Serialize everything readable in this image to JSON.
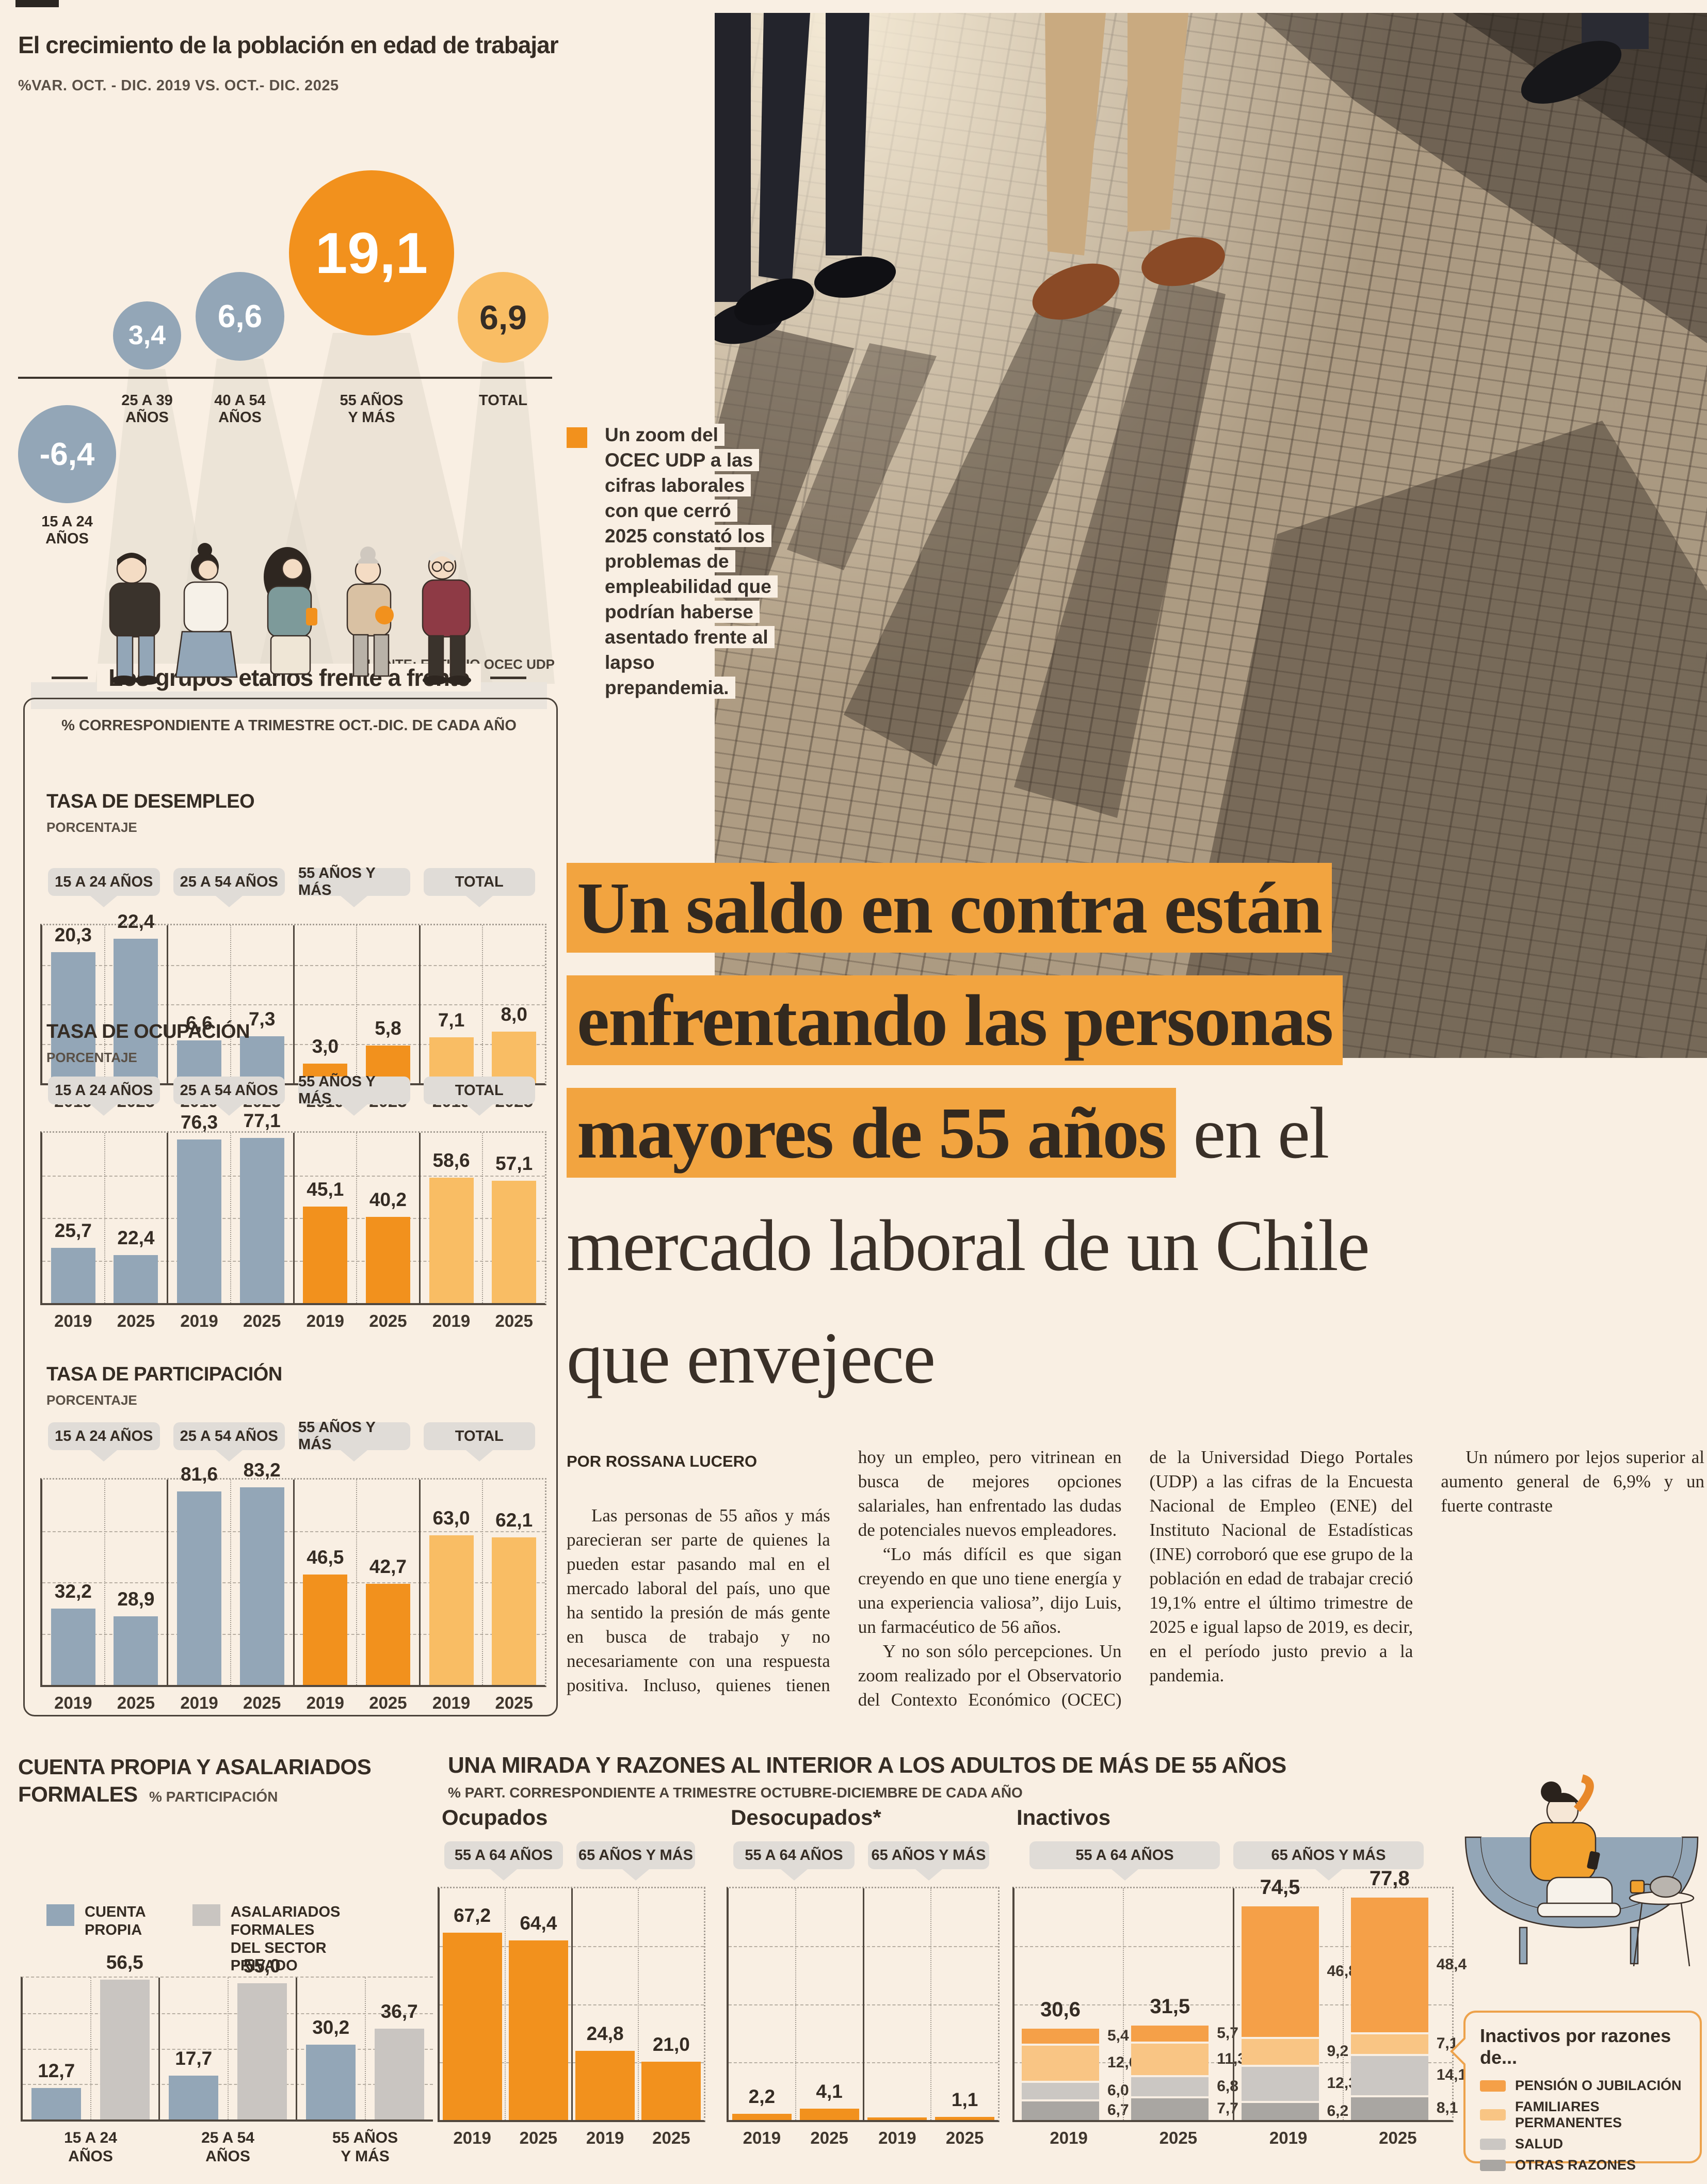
{
  "page": {
    "background": "#f9efe3",
    "text_dark": "#352c24",
    "accent_orange": "#f2911d",
    "accent_light_orange": "#f9bd64",
    "accent_blue_gray": "#93a6b7",
    "headline_highlight": "#f2a440"
  },
  "chart_data": [
    {
      "id": "growth",
      "type": "bar",
      "title": "El crecimiento de la población en edad de trabajar",
      "subtitle": "%VAR. OCT. - DIC. 2019 VS. OCT.- DIC. 2025",
      "source": "FUENTE: ESTUDIO OCEC UDP",
      "points": [
        {
          "label": "15 A 24\nAÑOS",
          "value": "-6,4",
          "num": -6.4,
          "color": "#93a6b7"
        },
        {
          "label": "25 A 39\nAÑOS",
          "value": "3,4",
          "num": 3.4,
          "color": "#93a6b7"
        },
        {
          "label": "40 A 54\nAÑOS",
          "value": "6,6",
          "num": 6.6,
          "color": "#93a6b7"
        },
        {
          "label": "55 AÑOS\nY MÁS",
          "value": "19,1",
          "num": 19.1,
          "color": "#f2911d"
        },
        {
          "label": "TOTAL",
          "value": "6,9",
          "num": 6.9,
          "color": "#f9bd64"
        }
      ]
    },
    {
      "id": "desempleo",
      "type": "bar",
      "title": "TASA DE DESEMPLEO",
      "unit": "PORCENTAJE",
      "years": [
        "2019",
        "2025"
      ],
      "groups": [
        {
          "label": "15 A 24 AÑOS",
          "color": "#93a6b7",
          "values": [
            20.3,
            22.4
          ],
          "labels": [
            "20,3",
            "22,4"
          ]
        },
        {
          "label": "25 A 54 AÑOS",
          "color": "#93a6b7",
          "values": [
            6.6,
            7.3
          ],
          "labels": [
            "6,6",
            "7,3"
          ]
        },
        {
          "label": "55 AÑOS Y MÁS",
          "color": "#f2911d",
          "values": [
            3.0,
            5.8
          ],
          "labels": [
            "3,0",
            "5,8"
          ]
        },
        {
          "label": "TOTAL",
          "color": "#f9bd64",
          "values": [
            7.1,
            8.0
          ],
          "labels": [
            "7,1",
            "8,0"
          ]
        }
      ]
    },
    {
      "id": "ocupacion",
      "type": "bar",
      "title": "TASA DE OCUPACIÓN",
      "unit": "PORCENTAJE",
      "years": [
        "2019",
        "2025"
      ],
      "groups": [
        {
          "label": "15 A 24 AÑOS",
          "color": "#93a6b7",
          "values": [
            25.7,
            22.4
          ],
          "labels": [
            "25,7",
            "22,4"
          ]
        },
        {
          "label": "25 A 54 AÑOS",
          "color": "#93a6b7",
          "values": [
            76.3,
            77.1
          ],
          "labels": [
            "76,3",
            "77,1"
          ]
        },
        {
          "label": "55 AÑOS Y MÁS",
          "color": "#f2911d",
          "values": [
            45.1,
            40.2
          ],
          "labels": [
            "45,1",
            "40,2"
          ]
        },
        {
          "label": "TOTAL",
          "color": "#f9bd64",
          "values": [
            58.6,
            57.1
          ],
          "labels": [
            "58,6",
            "57,1"
          ]
        }
      ]
    },
    {
      "id": "participacion",
      "type": "bar",
      "title": "TASA DE PARTICIPACIÓN",
      "unit": "PORCENTAJE",
      "years": [
        "2019",
        "2025"
      ],
      "groups": [
        {
          "label": "15 A 24 AÑOS",
          "color": "#93a6b7",
          "values": [
            32.2,
            28.9
          ],
          "labels": [
            "32,2",
            "28,9"
          ]
        },
        {
          "label": "25 A 54 AÑOS",
          "color": "#93a6b7",
          "values": [
            81.6,
            83.2
          ],
          "labels": [
            "81,6",
            "83,2"
          ]
        },
        {
          "label": "55 AÑOS Y MÁS",
          "color": "#f2911d",
          "values": [
            46.5,
            42.7
          ],
          "labels": [
            "46,5",
            "42,7"
          ]
        },
        {
          "label": "TOTAL",
          "color": "#f9bd64",
          "values": [
            63.0,
            62.1
          ],
          "labels": [
            "63,0",
            "62,1"
          ]
        }
      ]
    },
    {
      "id": "cuenta_propia",
      "type": "bar",
      "title": "CUENTA PROPIA Y ASALARIADOS FORMALES",
      "unit": "% PARTICIPACIÓN",
      "series": [
        {
          "name": "CUENTA\nPROPIA",
          "color": "#93a6b7"
        },
        {
          "name": "ASALARIADOS FORMALES\nDEL SECTOR PRIVADO",
          "color": "#c9c5c1"
        }
      ],
      "groups": [
        {
          "label": "15 A 24\nAÑOS",
          "values": [
            12.7,
            56.5
          ],
          "labels": [
            "12,7",
            "56,5"
          ]
        },
        {
          "label": "25 A 54\nAÑOS",
          "values": [
            17.7,
            55.0
          ],
          "labels": [
            "17,7",
            "55,0"
          ]
        },
        {
          "label": "55 AÑOS\nY MÁS",
          "values": [
            30.2,
            36.7
          ],
          "labels": [
            "30,2",
            "36,7"
          ]
        }
      ]
    },
    {
      "id": "ocupados",
      "type": "bar",
      "title": "Ocupados",
      "years": [
        "2019",
        "2025"
      ],
      "groups": [
        {
          "label": "55 A 64 AÑOS",
          "color": "#f2911d",
          "values": [
            67.2,
            64.4
          ],
          "labels": [
            "67,2",
            "64,4"
          ]
        },
        {
          "label": "65 AÑOS Y MÁS",
          "color": "#f2911d",
          "values": [
            24.8,
            21.0
          ],
          "labels": [
            "24,8",
            "21,0"
          ]
        }
      ]
    },
    {
      "id": "desocupados",
      "type": "bar",
      "title": "Desocupados*",
      "years": [
        "2019",
        "2025"
      ],
      "groups": [
        {
          "label": "55 A 64 AÑOS",
          "color": "#f2911d",
          "values": [
            2.2,
            4.1
          ],
          "labels": [
            "2,2",
            "4,1"
          ]
        },
        {
          "label": "65 AÑOS Y MÁS",
          "color": "#f2911d",
          "values": [
            null,
            1.1
          ],
          "labels": [
            "",
            "1,1"
          ]
        }
      ]
    },
    {
      "id": "inactivos",
      "type": "stacked-bar",
      "title": "Inactivos",
      "years": [
        "2019",
        "2025"
      ],
      "stack": [
        {
          "name": "PENSIÓN O JUBILACIÓN",
          "color": "#f5a048"
        },
        {
          "name": "FAMILIARES PERMANENTES",
          "color": "#f9c584"
        },
        {
          "name": "SALUD",
          "color": "#cbc7c3"
        },
        {
          "name": "OTRAS RAZONES",
          "color": "#a9a6a2"
        }
      ],
      "groups": [
        {
          "label": "55 A 64 AÑOS",
          "bars": [
            {
              "year": "2019",
              "total": "30,6",
              "values": [
                5.4,
                12.6,
                6.0,
                6.7
              ],
              "labels": [
                "5,4",
                "12,6",
                "6,0",
                "6,7"
              ]
            },
            {
              "year": "2025",
              "total": "31,5",
              "values": [
                5.7,
                11.3,
                6.8,
                7.7
              ],
              "labels": [
                "5,7",
                "11,3",
                "6,8",
                "7,7"
              ]
            }
          ]
        },
        {
          "label": "65 AÑOS Y MÁS",
          "bars": [
            {
              "year": "2019",
              "total": "74,5",
              "values": [
                46.8,
                9.2,
                12.3,
                6.2
              ],
              "labels": [
                "46,8",
                "9,2",
                "12,3",
                "6,2"
              ]
            },
            {
              "year": "2025",
              "total": "77,8",
              "values": [
                48.4,
                7.1,
                14.1,
                8.1
              ],
              "labels": [
                "48,4",
                "7,1",
                "14,1",
                "8,1"
              ]
            }
          ]
        }
      ]
    }
  ],
  "groups_box": {
    "title": "Los grupos etarios frente a frente",
    "subtitle": "% CORRESPONDIENTE A TRIMESTRE OCT.-DIC. DE CADA AÑO"
  },
  "bottom_mid": {
    "title": "UNA MIRADA Y RAZONES AL INTERIOR A LOS ADULTOS DE MÁS DE 55 AÑOS",
    "subtitle": "% PART. CORRESPONDIENTE A TRIMESTRE OCTUBRE-DICIEMBRE DE CADA AÑO"
  },
  "inactive_reasons": {
    "title": "Inactivos por razones de...",
    "items": [
      {
        "label": "PENSIÓN O JUBILACIÓN",
        "color": "#f5a048"
      },
      {
        "label": "FAMILIARES PERMANENTES",
        "color": "#f9c584"
      },
      {
        "label": "SALUD",
        "color": "#cbc7c3"
      },
      {
        "label": "OTRAS RAZONES",
        "color": "#a9a6a2"
      }
    ]
  },
  "feature": {
    "kicker_text": "Un zoom del OCEC UDP a las cifras laborales con que cerró 2025 constató los problemas de empleabilidad que podrían haberse asentado frente al lapso prepandemia.",
    "headline_highlight_1": "Un saldo en contra están",
    "headline_highlight_2": "enfrentando las personas",
    "headline_highlight_3": "mayores de 55 años",
    "headline_rest_3": " en el",
    "headline_line_4": "mercado laboral de un Chile",
    "headline_line_5": "que envejece",
    "byline": "POR ROSSANA LUCERO",
    "paragraphs": [
      "Las personas de 55 años y más parecieran ser parte de quienes la pueden estar pasando mal en el mercado laboral del país, uno que ha sentido la presión de más gente en busca de trabajo y no necesariamente con una respuesta positiva. Incluso, quienes tienen hoy un empleo, pero vitrinean en busca de mejores opciones salariales, han enfrentado las dudas de potenciales nuevos empleadores.",
      "“Lo más difícil es que sigan creyendo en que uno tiene energía y una experiencia valiosa”, dijo Luis, un farmacéutico de 56 años.",
      "Y no son sólo percepciones. Un zoom realizado por el Observatorio del Contexto Económico (OCEC) de la Universidad Diego Portales (UDP) a las cifras de la Encuesta Nacional de Empleo (ENE) del Instituto Nacional de Estadísticas (INE) corroboró que ese grupo de la población en edad de trabajar creció 19,1% entre el último trimestre de 2025 e igual lapso de 2019, es decir, en el período justo previo a la pandemia.",
      "Un número por lejos superior al aumento general de 6,9% y un fuerte contraste"
    ]
  }
}
